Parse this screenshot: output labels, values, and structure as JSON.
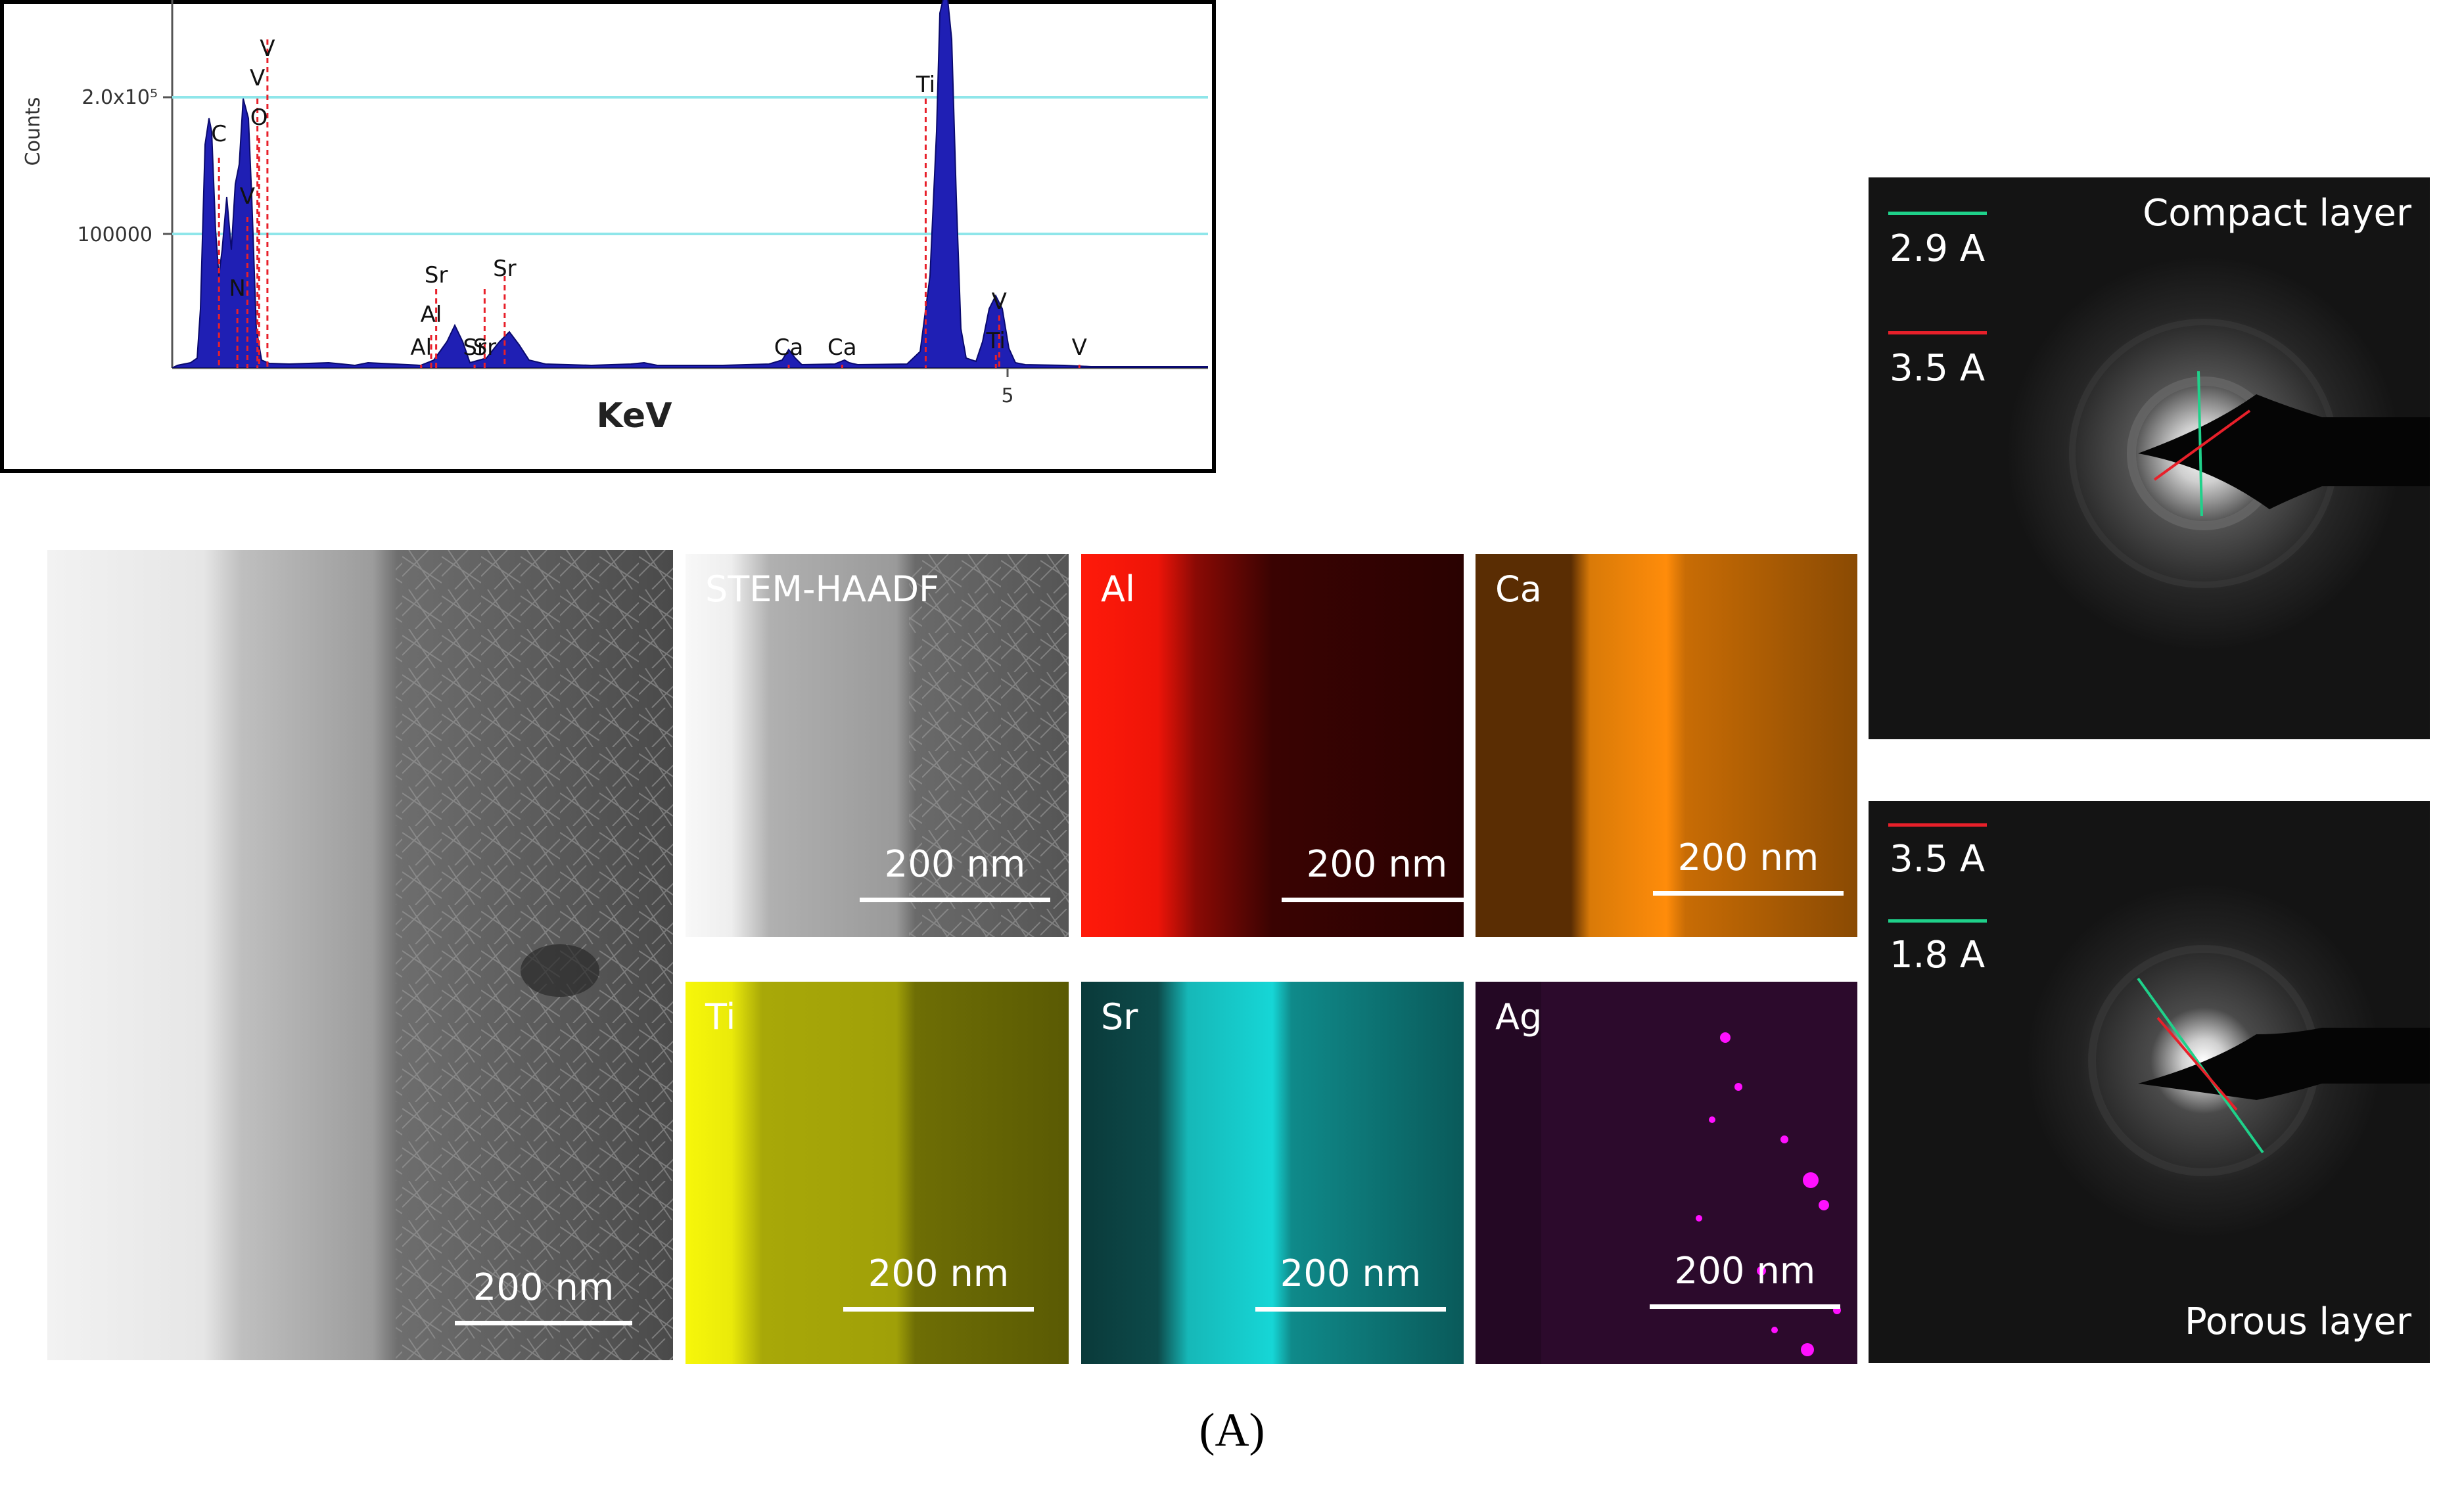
{
  "chart_data": {
    "type": "line",
    "title": "",
    "xlabel": "KeV",
    "ylabel": "Counts",
    "x_ticks": [
      "5"
    ],
    "y_ticks": [
      "100000",
      "2.0x10⁵"
    ],
    "peaks": [
      {
        "label": "C",
        "x": 0.28
      },
      {
        "label": "N",
        "x": 0.39
      },
      {
        "label": "V",
        "x": 0.45
      },
      {
        "label": "V",
        "x": 0.51
      },
      {
        "label": "O",
        "x": 0.52
      },
      {
        "label": "V",
        "x": 0.57
      },
      {
        "label": "Al",
        "x": 1.49
      },
      {
        "label": "Al",
        "x": 1.55
      },
      {
        "label": "Sr",
        "x": 1.58
      },
      {
        "label": "Sr",
        "x": 1.81
      },
      {
        "label": "Sr",
        "x": 1.87
      },
      {
        "label": "Sr",
        "x": 1.99
      },
      {
        "label": "Ca",
        "x": 3.69
      },
      {
        "label": "Ca",
        "x": 4.01
      },
      {
        "label": "Ti",
        "x": 4.51
      },
      {
        "label": "V",
        "x": 4.95
      },
      {
        "label": "Ti",
        "x": 4.93
      },
      {
        "label": "V",
        "x": 5.43
      }
    ]
  },
  "panels": {
    "stem_label": "STEM-HAADF",
    "al": "Al",
    "ca": "Ca",
    "ti": "Ti",
    "sr": "Sr",
    "ag": "Ag",
    "scale": "200 nm"
  },
  "saed": {
    "top_title": "Compact layer",
    "top_d1": "2.9 A",
    "top_d2": "3.5 A",
    "bottom_title": "Porous layer",
    "bottom_d1": "3.5 A",
    "bottom_d2": "1.8 A"
  },
  "colors": {
    "spectrum_fill": "#1f1fb4",
    "gridline": "#8fe6ea",
    "marker": "#e8202a",
    "al": "#ff1a0a",
    "ca": "#ff8c0a",
    "ti": "#f2f20a",
    "sr": "#16e6e6",
    "ag": "#e60ae6",
    "saed_green": "#1fd18a",
    "saed_red": "#e8202a"
  },
  "caption": "(A)"
}
